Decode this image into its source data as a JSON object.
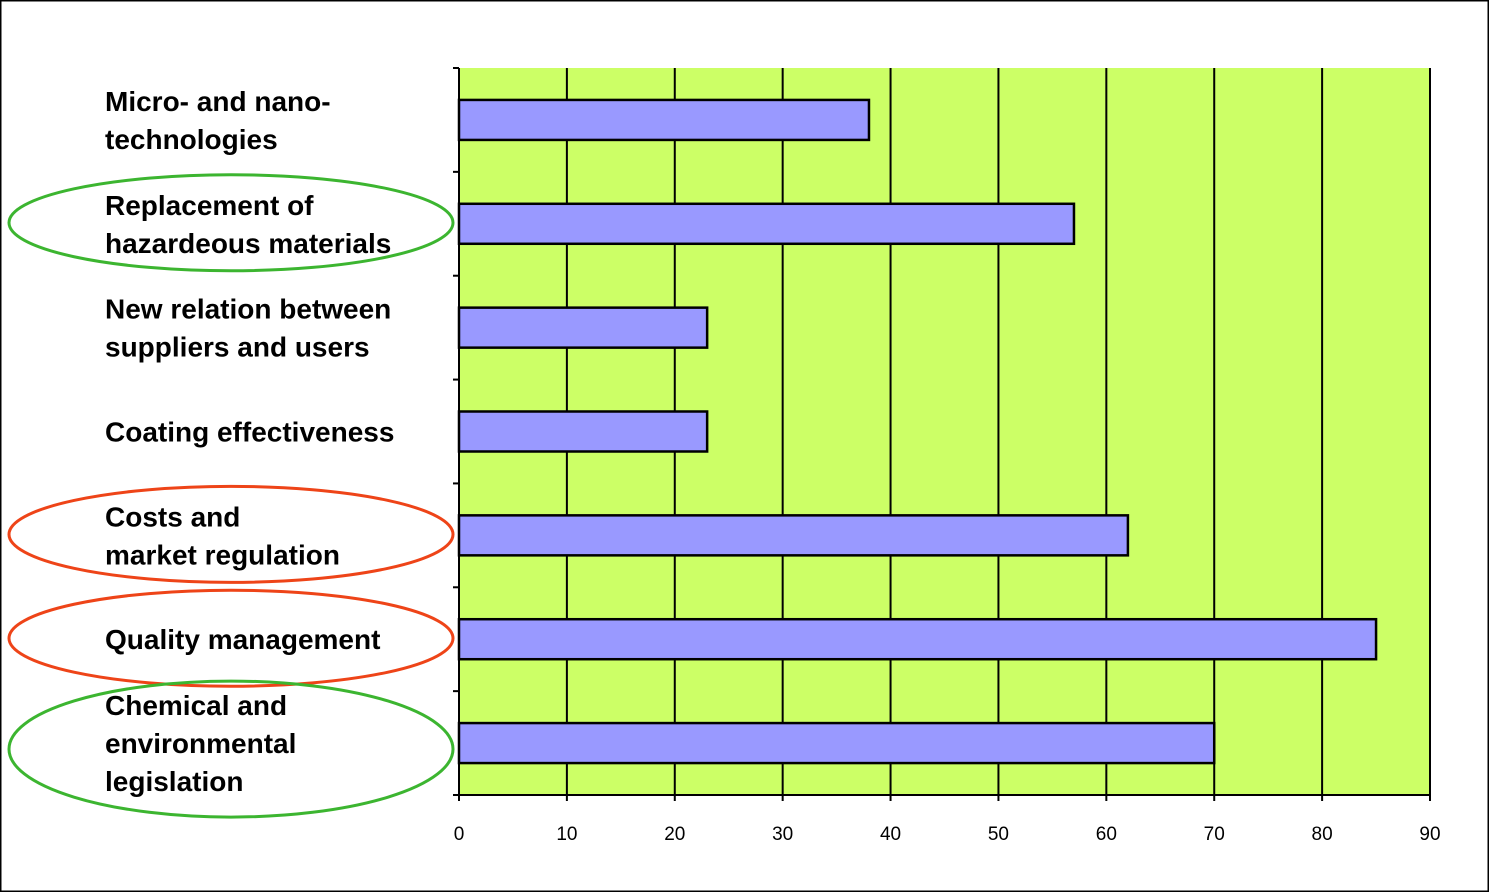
{
  "chart_data": {
    "type": "bar",
    "orientation": "horizontal",
    "categories": [
      "Micro- and nano-\ntechnologies",
      "Replacement of\nhazardeous materials",
      "New relation between\nsuppliers and users",
      "Coating effectiveness",
      "Costs and\nmarket regulation",
      "Quality management",
      "Chemical and\nenvironmental\nlegislation"
    ],
    "values": [
      38,
      57,
      23,
      23,
      62,
      85,
      70
    ],
    "xlim": [
      0,
      90
    ],
    "xticks": [
      "0",
      "10",
      "20",
      "30",
      "40",
      "50",
      "60",
      "70",
      "80",
      "90"
    ],
    "grid": "vertical",
    "legend": "none",
    "highlights": [
      {
        "category_index": 1,
        "color": "#3cb530"
      },
      {
        "category_index": 4,
        "color": "#ee4418"
      },
      {
        "category_index": 5,
        "color": "#ee4418"
      },
      {
        "category_index": 6,
        "color": "#3cb530"
      }
    ],
    "colors": {
      "plot_background": "#ccff66",
      "bar_fill": "#9999ff",
      "bar_stroke": "#000000",
      "gridline": "#000000"
    }
  }
}
